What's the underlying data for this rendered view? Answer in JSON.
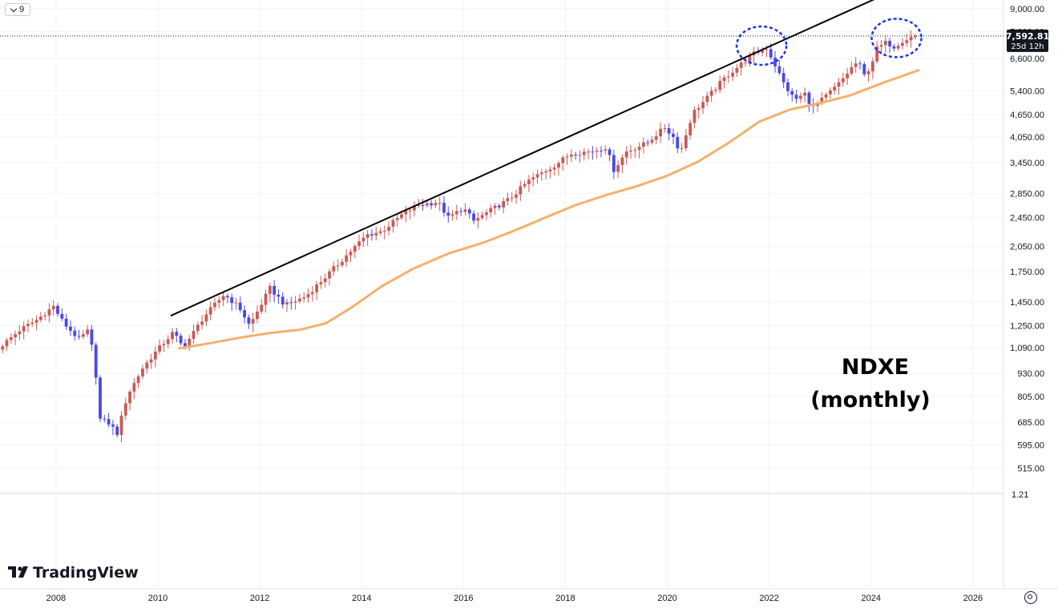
{
  "toolbar": {
    "interval_label": "9"
  },
  "brand": {
    "name": "TradingView",
    "colors": {
      "text": "#131722"
    }
  },
  "settings_icon": "gear-icon",
  "last_price": {
    "value": "7,592.81",
    "countdown": "25d 12h",
    "bg": "#131722"
  },
  "annotation": {
    "line1": "NDXE",
    "line2": "(monthly)"
  },
  "colors": {
    "up": "#c95a55",
    "down": "#4b48e8",
    "ma": "#f5b06b",
    "trendline": "#000000",
    "circle": "#1f37d9"
  },
  "chart_data": {
    "type": "candlestick",
    "scale": "log",
    "x_ticks": [
      "2008",
      "2010",
      "2012",
      "2014",
      "2016",
      "2018",
      "2020",
      "2022",
      "2024",
      "2026"
    ],
    "y_ticks": [
      "515.00",
      "595.00",
      "685.00",
      "805.00",
      "930.00",
      "1,090.00",
      "1,250.00",
      "1,450.00",
      "1,750.00",
      "2,050.00",
      "2,450.00",
      "2,850.00",
      "3,450.00",
      "4,050.00",
      "4,650.00",
      "5,400.00",
      "6,600.00",
      "7,800.00",
      "9,000.00"
    ],
    "y_range": [
      440,
      9500
    ],
    "x_range": [
      2006.9,
      2026.6
    ],
    "extra_tick": "1.21",
    "closes": [
      {
        "t": 2006.95,
        "c": 1110
      },
      {
        "t": 2007.3,
        "c": 1220
      },
      {
        "t": 2007.6,
        "c": 1290
      },
      {
        "t": 2007.95,
        "c": 1410
      },
      {
        "t": 2008.15,
        "c": 1270
      },
      {
        "t": 2008.45,
        "c": 1150
      },
      {
        "t": 2008.65,
        "c": 1220
      },
      {
        "t": 2008.78,
        "c": 930
      },
      {
        "t": 2008.85,
        "c": 700
      },
      {
        "t": 2009.05,
        "c": 680
      },
      {
        "t": 2009.2,
        "c": 640
      },
      {
        "t": 2009.4,
        "c": 810
      },
      {
        "t": 2009.7,
        "c": 960
      },
      {
        "t": 2009.95,
        "c": 1060
      },
      {
        "t": 2010.3,
        "c": 1200
      },
      {
        "t": 2010.5,
        "c": 1090
      },
      {
        "t": 2010.9,
        "c": 1320
      },
      {
        "t": 2011.3,
        "c": 1520
      },
      {
        "t": 2011.6,
        "c": 1400
      },
      {
        "t": 2011.8,
        "c": 1250
      },
      {
        "t": 2012.2,
        "c": 1580
      },
      {
        "t": 2012.5,
        "c": 1420
      },
      {
        "t": 2012.9,
        "c": 1500
      },
      {
        "t": 2013.3,
        "c": 1700
      },
      {
        "t": 2013.8,
        "c": 2000
      },
      {
        "t": 2014.1,
        "c": 2200
      },
      {
        "t": 2014.4,
        "c": 2250
      },
      {
        "t": 2014.8,
        "c": 2500
      },
      {
        "t": 2015.1,
        "c": 2650
      },
      {
        "t": 2015.5,
        "c": 2700
      },
      {
        "t": 2015.7,
        "c": 2450
      },
      {
        "t": 2016.0,
        "c": 2600
      },
      {
        "t": 2016.2,
        "c": 2400
      },
      {
        "t": 2016.6,
        "c": 2600
      },
      {
        "t": 2016.9,
        "c": 2750
      },
      {
        "t": 2017.3,
        "c": 3100
      },
      {
        "t": 2017.8,
        "c": 3400
      },
      {
        "t": 2018.1,
        "c": 3650
      },
      {
        "t": 2018.5,
        "c": 3700
      },
      {
        "t": 2018.8,
        "c": 3800
      },
      {
        "t": 2018.95,
        "c": 3300
      },
      {
        "t": 2019.2,
        "c": 3700
      },
      {
        "t": 2019.6,
        "c": 3900
      },
      {
        "t": 2019.95,
        "c": 4300
      },
      {
        "t": 2020.15,
        "c": 4000
      },
      {
        "t": 2020.25,
        "c": 3650
      },
      {
        "t": 2020.5,
        "c": 4700
      },
      {
        "t": 2020.8,
        "c": 5200
      },
      {
        "t": 2021.1,
        "c": 5800
      },
      {
        "t": 2021.4,
        "c": 6300
      },
      {
        "t": 2021.7,
        "c": 6800
      },
      {
        "t": 2021.95,
        "c": 7050
      },
      {
        "t": 2022.1,
        "c": 6400
      },
      {
        "t": 2022.3,
        "c": 5600
      },
      {
        "t": 2022.5,
        "c": 5100
      },
      {
        "t": 2022.7,
        "c": 5300
      },
      {
        "t": 2022.85,
        "c": 4850
      },
      {
        "t": 2023.1,
        "c": 5200
      },
      {
        "t": 2023.4,
        "c": 5700
      },
      {
        "t": 2023.6,
        "c": 6200
      },
      {
        "t": 2023.75,
        "c": 6500
      },
      {
        "t": 2023.85,
        "c": 5900
      },
      {
        "t": 2024.0,
        "c": 6300
      },
      {
        "t": 2024.1,
        "c": 7000
      },
      {
        "t": 2024.3,
        "c": 7300
      },
      {
        "t": 2024.45,
        "c": 7100
      },
      {
        "t": 2024.6,
        "c": 7350
      },
      {
        "t": 2024.8,
        "c": 7550
      },
      {
        "t": 2024.9,
        "c": 7592.81
      }
    ],
    "moving_average": [
      {
        "t": 2010.4,
        "v": 1085
      },
      {
        "t": 2011.0,
        "v": 1120
      },
      {
        "t": 2011.6,
        "v": 1160
      },
      {
        "t": 2012.2,
        "v": 1195
      },
      {
        "t": 2012.8,
        "v": 1220
      },
      {
        "t": 2013.3,
        "v": 1270
      },
      {
        "t": 2013.8,
        "v": 1400
      },
      {
        "t": 2014.4,
        "v": 1600
      },
      {
        "t": 2015.0,
        "v": 1780
      },
      {
        "t": 2015.7,
        "v": 1960
      },
      {
        "t": 2016.4,
        "v": 2100
      },
      {
        "t": 2017.0,
        "v": 2260
      },
      {
        "t": 2017.6,
        "v": 2450
      },
      {
        "t": 2018.2,
        "v": 2650
      },
      {
        "t": 2018.8,
        "v": 2820
      },
      {
        "t": 2019.4,
        "v": 2980
      },
      {
        "t": 2020.0,
        "v": 3180
      },
      {
        "t": 2020.6,
        "v": 3470
      },
      {
        "t": 2021.2,
        "v": 3900
      },
      {
        "t": 2021.8,
        "v": 4450
      },
      {
        "t": 2022.4,
        "v": 4800
      },
      {
        "t": 2023.0,
        "v": 5000
      },
      {
        "t": 2023.6,
        "v": 5250
      },
      {
        "t": 2024.2,
        "v": 5650
      },
      {
        "t": 2024.95,
        "v": 6150
      }
    ],
    "trendline": [
      {
        "t": 2010.25,
        "v": 1330
      },
      {
        "t": 2024.25,
        "v": 9800
      }
    ],
    "highlight_circles": [
      {
        "t": 2021.85,
        "v": 7150
      },
      {
        "t": 2024.5,
        "v": 7500
      }
    ]
  }
}
